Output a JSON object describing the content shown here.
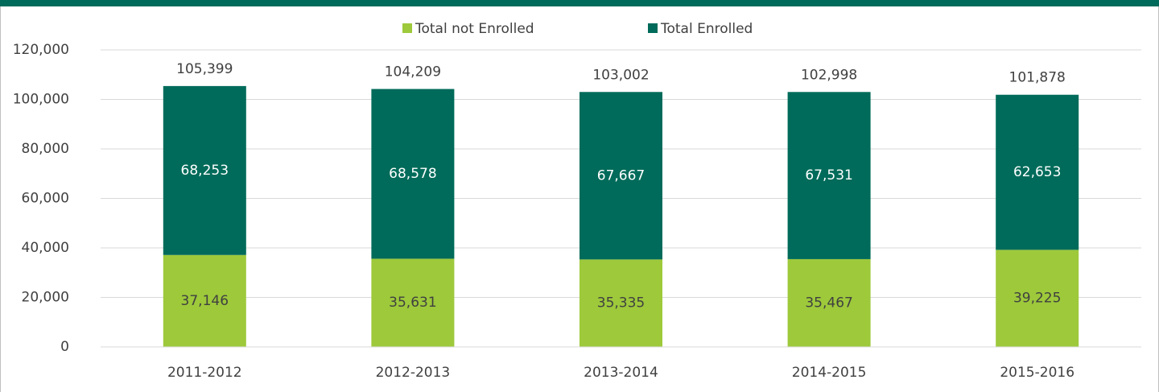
{
  "chart_data": {
    "type": "stacked_bar",
    "categories": [
      "2011-2012",
      "2012-2013",
      "2013-2014",
      "2014-2015",
      "2015-2016"
    ],
    "series": [
      {
        "name": "Total not Enrolled",
        "color": "#9dc93b",
        "values": [
          37146,
          35631,
          35335,
          35467,
          39225
        ],
        "value_labels": [
          "37,146",
          "35,631",
          "35,335",
          "35,467",
          "39,225"
        ]
      },
      {
        "name": "Total Enrolled",
        "color": "#006b5a",
        "values": [
          68253,
          68578,
          67667,
          67531,
          62653
        ],
        "value_labels": [
          "68,253",
          "68,578",
          "67,667",
          "67,531",
          "62,653"
        ]
      }
    ],
    "totals": [
      105399,
      104209,
      103002,
      102998,
      101878
    ],
    "total_labels": [
      "105,399",
      "104,209",
      "103,002",
      "102,998",
      "101,878"
    ],
    "ylim": [
      0,
      120000
    ],
    "yticks": [
      0,
      {
        "value": 20000,
        "label": "20,000"
      },
      {
        "value": 40000,
        "label": "40,000"
      },
      {
        "value": 60000,
        "label": "60,000"
      },
      {
        "value": 80000,
        "label": "80,000"
      },
      {
        "value": 100000,
        "label": "100,000"
      },
      {
        "value": 120000,
        "label": "120,000"
      }
    ],
    "grid": true,
    "legend": "top"
  }
}
